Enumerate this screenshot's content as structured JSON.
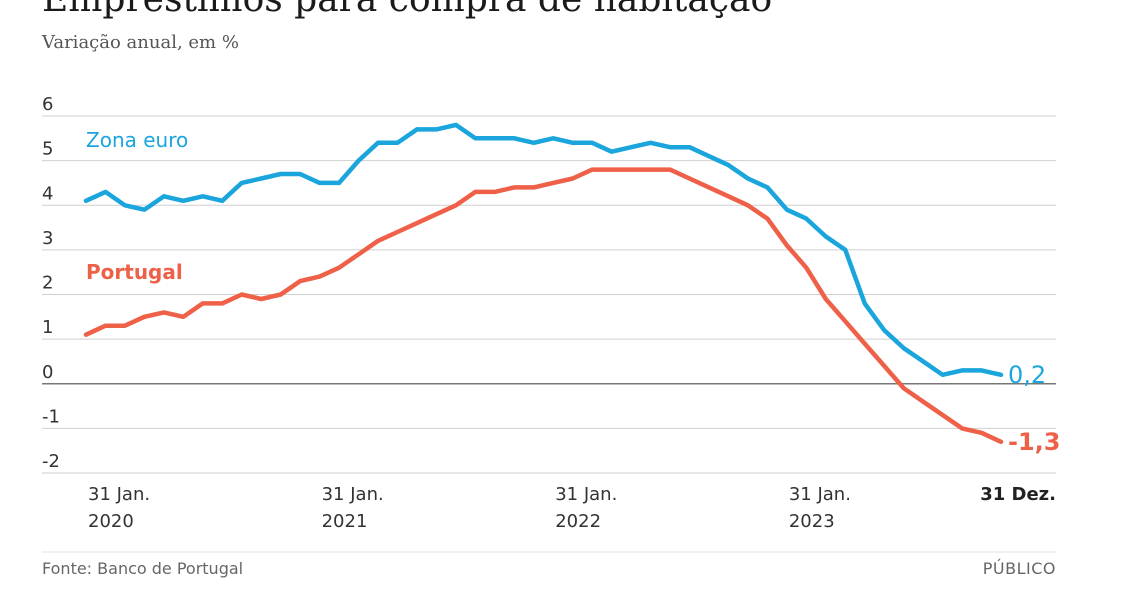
{
  "chart_data": {
    "type": "line",
    "title": "Empréstimos para compra de habitação",
    "subtitle": "Variação anual, em %",
    "ylim": [
      -2,
      6
    ],
    "yticks": [
      "6",
      "5",
      "4",
      "3",
      "2",
      "1",
      "0",
      "-1",
      "-2"
    ],
    "xticks": [
      {
        "line1": "31 Jan.",
        "line2": "2020",
        "index": 0
      },
      {
        "line1": "31 Jan.",
        "line2": "2021",
        "index": 12
      },
      {
        "line1": "31 Jan.",
        "line2": "2022",
        "index": 24
      },
      {
        "line1": "31 Jan.",
        "line2": "2023",
        "index": 36
      },
      {
        "line1": "31 Dez.",
        "line2": "",
        "index": 47,
        "bold": true
      }
    ],
    "grid": true,
    "series": [
      {
        "name": "Zona euro",
        "color": "#1aa5dd",
        "end_label": "0,2",
        "values": [
          4.1,
          4.3,
          4.0,
          3.9,
          4.2,
          4.1,
          4.2,
          4.1,
          4.5,
          4.6,
          4.7,
          4.7,
          4.5,
          4.5,
          5.0,
          5.4,
          5.4,
          5.7,
          5.7,
          5.8,
          5.5,
          5.5,
          5.5,
          5.4,
          5.5,
          5.4,
          5.4,
          5.2,
          5.3,
          5.4,
          5.3,
          5.3,
          5.1,
          4.9,
          4.6,
          4.4,
          3.9,
          3.7,
          3.3,
          3.0,
          1.8,
          1.2,
          0.8,
          0.5,
          0.2,
          0.3,
          0.3,
          0.2
        ]
      },
      {
        "name": "Portugal",
        "color": "#ee6048",
        "end_label": "-1,3",
        "values": [
          1.1,
          1.3,
          1.3,
          1.5,
          1.6,
          1.5,
          1.8,
          1.8,
          2.0,
          1.9,
          2.0,
          2.3,
          2.4,
          2.6,
          2.9,
          3.2,
          3.4,
          3.6,
          3.8,
          4.0,
          4.3,
          4.3,
          4.4,
          4.4,
          4.5,
          4.6,
          4.8,
          4.8,
          4.8,
          4.8,
          4.8,
          4.6,
          4.4,
          4.2,
          4.0,
          3.7,
          3.1,
          2.6,
          1.9,
          1.4,
          0.9,
          0.4,
          -0.1,
          -0.4,
          -0.7,
          -1.0,
          -1.1,
          -1.3
        ]
      }
    ]
  },
  "footer": {
    "source": "Fonte: Banco de Portugal",
    "brand": "PÚBLICO"
  }
}
